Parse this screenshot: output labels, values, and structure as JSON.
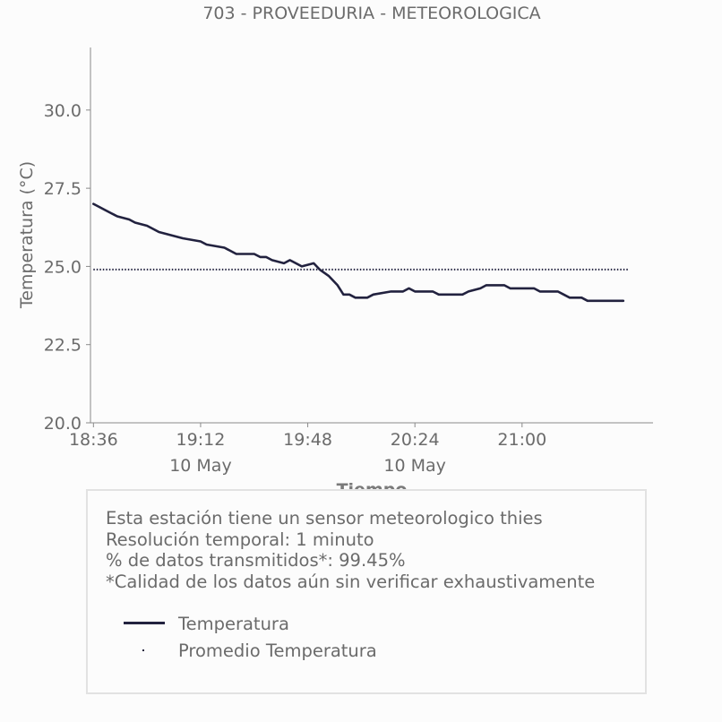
{
  "chart_data": {
    "type": "line",
    "title": "703 - PROVEEDURIA - METEOROLOGICA",
    "xlabel": "Tiempo",
    "ylabel": "Temperatura (°C)",
    "xlim_minutes_since_1836": [
      -1,
      188
    ],
    "ylim": [
      20.0,
      32.0
    ],
    "yticks": [
      20.0,
      22.5,
      25.0,
      27.5,
      30.0
    ],
    "ytick_labels": [
      "20.0",
      "22.5",
      "25.0",
      "27.5",
      "30.0"
    ],
    "xticks": [
      {
        "time": "18:36",
        "date": ""
      },
      {
        "time": "19:12",
        "date": "10 May"
      },
      {
        "time": "19:48",
        "date": ""
      },
      {
        "time": "20:24",
        "date": "10 May"
      },
      {
        "time": "21:00",
        "date": ""
      }
    ],
    "grid": false,
    "series": [
      {
        "name": "Temperatura",
        "color": "#22223f",
        "style": "solid",
        "points": [
          [
            "18:36",
            27.0
          ],
          [
            "18:38",
            26.9
          ],
          [
            "18:40",
            26.8
          ],
          [
            "18:42",
            26.7
          ],
          [
            "18:44",
            26.6
          ],
          [
            "18:48",
            26.5
          ],
          [
            "18:50",
            26.4
          ],
          [
            "18:54",
            26.3
          ],
          [
            "18:56",
            26.2
          ],
          [
            "18:58",
            26.1
          ],
          [
            "19:02",
            26.0
          ],
          [
            "19:06",
            25.9
          ],
          [
            "19:12",
            25.8
          ],
          [
            "19:14",
            25.7
          ],
          [
            "19:20",
            25.6
          ],
          [
            "19:22",
            25.5
          ],
          [
            "19:24",
            25.4
          ],
          [
            "19:30",
            25.4
          ],
          [
            "19:32",
            25.3
          ],
          [
            "19:34",
            25.3
          ],
          [
            "19:36",
            25.2
          ],
          [
            "19:40",
            25.1
          ],
          [
            "19:42",
            25.2
          ],
          [
            "19:44",
            25.1
          ],
          [
            "19:46",
            25.0
          ],
          [
            "19:50",
            25.1
          ],
          [
            "19:52",
            24.9
          ],
          [
            "19:55",
            24.7
          ],
          [
            "19:58",
            24.4
          ],
          [
            "20:00",
            24.1
          ],
          [
            "20:02",
            24.1
          ],
          [
            "20:04",
            24.0
          ],
          [
            "20:08",
            24.0
          ],
          [
            "20:10",
            24.1
          ],
          [
            "20:16",
            24.2
          ],
          [
            "20:20",
            24.2
          ],
          [
            "20:22",
            24.3
          ],
          [
            "20:24",
            24.2
          ],
          [
            "20:30",
            24.2
          ],
          [
            "20:32",
            24.1
          ],
          [
            "20:40",
            24.1
          ],
          [
            "20:42",
            24.2
          ],
          [
            "20:46",
            24.3
          ],
          [
            "20:48",
            24.4
          ],
          [
            "20:54",
            24.4
          ],
          [
            "20:56",
            24.3
          ],
          [
            "21:04",
            24.3
          ],
          [
            "21:06",
            24.2
          ],
          [
            "21:12",
            24.2
          ],
          [
            "21:14",
            24.1
          ],
          [
            "21:16",
            24.0
          ],
          [
            "21:20",
            24.0
          ],
          [
            "21:22",
            23.9
          ],
          [
            "21:34",
            23.9
          ]
        ]
      },
      {
        "name": "Promedio Temperatura",
        "color": "#22223f",
        "style": "dotted",
        "points": [
          [
            "18:36",
            24.9
          ],
          [
            "21:36",
            24.9
          ]
        ]
      }
    ]
  },
  "info": {
    "lines": [
      "Esta estación tiene un sensor meteorologico thies",
      "Resolución temporal: 1 minuto",
      "% de datos transmitidos*: 99.45%",
      "*Calidad de los datos aún sin verificar exhaustivamente"
    ]
  },
  "legend": {
    "items": [
      {
        "label": "Temperatura",
        "marker": "line"
      },
      {
        "label": "Promedio Temperatura",
        "marker": "dot"
      }
    ]
  }
}
